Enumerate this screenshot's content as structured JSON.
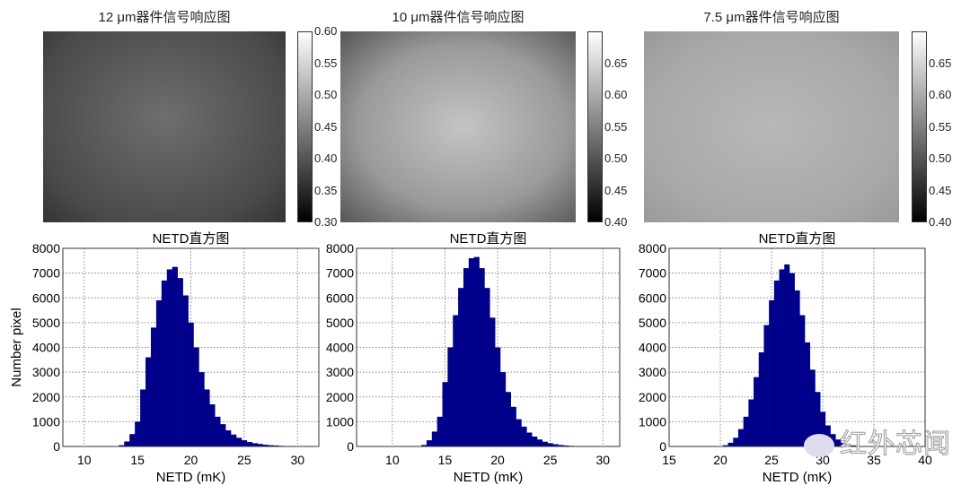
{
  "images": [
    {
      "title": "12 μm器件信号响应图",
      "colorbar_ticks": [
        "0.60",
        "0.55",
        "0.50",
        "0.45",
        "0.40",
        "0.35",
        "0.30"
      ],
      "clim": [
        0.3,
        0.6
      ]
    },
    {
      "title": "10 μm器件信号响应图",
      "colorbar_ticks": [
        "0.65",
        "0.60",
        "0.55",
        "0.50",
        "0.45",
        "0.40"
      ],
      "clim": [
        0.4,
        0.7
      ]
    },
    {
      "title": "7.5 μm器件信号响应图",
      "colorbar_ticks": [
        "0.65",
        "0.60",
        "0.55",
        "0.50",
        "0.45",
        "0.40"
      ],
      "clim": [
        0.4,
        0.7
      ]
    }
  ],
  "chart_data": [
    {
      "type": "bar",
      "title": "NETD直方图",
      "xlabel": "NETD (mK)",
      "ylabel": "Number pixel",
      "xlim": [
        8,
        32
      ],
      "ylim": [
        0,
        8000
      ],
      "grid": true,
      "color": "#00008b",
      "xticks": [
        10,
        15,
        20,
        25,
        30
      ],
      "yticks": [
        0,
        1000,
        2000,
        3000,
        4000,
        5000,
        6000,
        7000,
        8000
      ],
      "bin_start": 13,
      "bin_width": 0.5,
      "values": [
        0,
        50,
        200,
        500,
        1000,
        2300,
        3600,
        4800,
        5900,
        6700,
        7150,
        7250,
        6800,
        6100,
        5000,
        4000,
        3000,
        2300,
        1700,
        1200,
        900,
        650,
        480,
        350,
        250,
        180,
        130,
        100,
        70,
        50,
        40,
        25,
        15,
        8,
        0
      ]
    },
    {
      "type": "bar",
      "title": "NETD直方图",
      "xlabel": "NETD (mK)",
      "ylabel": "",
      "xlim": [
        6.6,
        31.6
      ],
      "ylim": [
        0,
        8000
      ],
      "grid": true,
      "color": "#00008b",
      "xticks": [
        10,
        15,
        20,
        25,
        30
      ],
      "yticks": [
        0,
        1000,
        2000,
        3000,
        4000,
        5000,
        6000,
        7000,
        8000
      ],
      "bin_start": 12.5,
      "bin_width": 0.5,
      "values": [
        0,
        60,
        250,
        600,
        1200,
        2600,
        4000,
        5300,
        6400,
        7200,
        7600,
        7650,
        7200,
        6400,
        5200,
        4000,
        3000,
        2200,
        1600,
        1100,
        800,
        560,
        400,
        280,
        190,
        130,
        90,
        60,
        40,
        25,
        15,
        8,
        0
      ]
    },
    {
      "type": "bar",
      "title": "NETD直方图",
      "xlabel": "NETD (mK)",
      "ylabel": "",
      "xlim": [
        15,
        40
      ],
      "ylim": [
        0,
        8000
      ],
      "grid": true,
      "color": "#00008b",
      "xticks": [
        15,
        20,
        25,
        30,
        35,
        40
      ],
      "yticks": [
        0,
        1000,
        2000,
        3000,
        4000,
        5000,
        6000,
        7000,
        8000
      ],
      "bin_start": 20,
      "bin_width": 0.5,
      "values": [
        0,
        50,
        150,
        350,
        700,
        1200,
        1900,
        2800,
        3800,
        4900,
        5900,
        6700,
        7150,
        7350,
        7000,
        6300,
        5300,
        4200,
        3100,
        2200,
        1400,
        850,
        500,
        280,
        150,
        80,
        40,
        10,
        0
      ]
    }
  ],
  "watermark": "红外芯闻"
}
